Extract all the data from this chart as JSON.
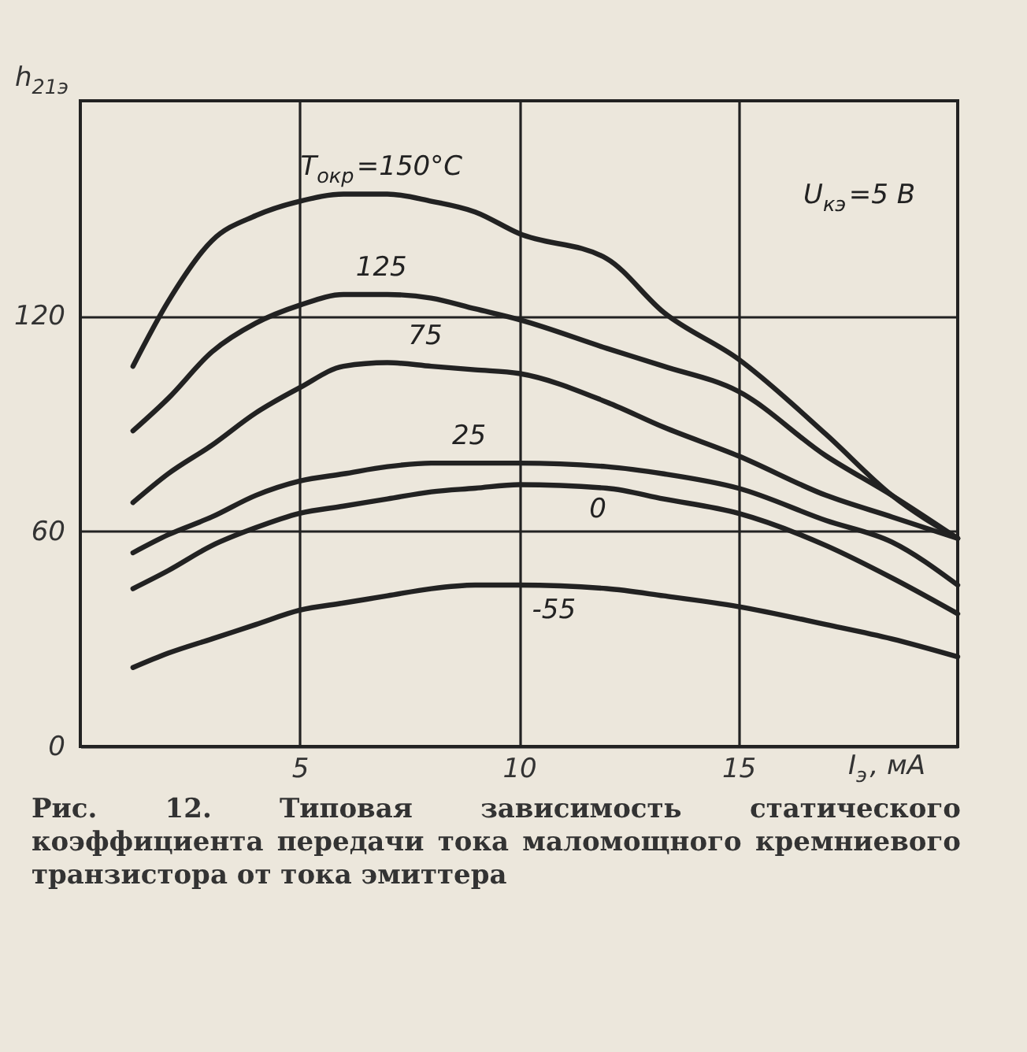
{
  "chart_data": {
    "type": "line",
    "xlabel": "I$_{э}$, мА",
    "ylabel": "h$_{21э}$",
    "xlim": [
      0,
      20
    ],
    "ylim": [
      0,
      180
    ],
    "xticks": [
      5,
      10,
      15
    ],
    "yticks": [
      0,
      60,
      120
    ],
    "grid": true,
    "legend": false,
    "marker": "none",
    "line_style": "solid",
    "annotations": [
      "U$_{кэ}$=5 В",
      "Рис. 12. Типовая зависимость статического коэффициента передачи тока маломощного кремниевого транзистора от тока эмиттера"
    ],
    "x": [
      1.2,
      2,
      3,
      4,
      5,
      6,
      7,
      8,
      9,
      10,
      12,
      13.3,
      15,
      17,
      18.5,
      20
    ],
    "series": [
      {
        "name": "T$_{окр}$=150°C",
        "color": "#222222",
        "values": [
          106,
          124,
          141,
          148,
          152,
          154,
          154,
          152,
          149,
          143,
          136,
          121,
          108,
          87,
          70,
          58
        ]
      },
      {
        "name": "125",
        "color": "#222222",
        "values": [
          88,
          97,
          110,
          118,
          123,
          126,
          126,
          125,
          122,
          119,
          111,
          106,
          99,
          81,
          70,
          58
        ]
      },
      {
        "name": "75",
        "color": "#222222",
        "values": [
          68,
          76,
          84,
          93,
          100,
          106,
          107,
          106,
          105,
          104,
          96,
          89,
          81,
          70,
          64,
          58
        ]
      },
      {
        "name": "25",
        "color": "#222222",
        "values": [
          54,
          59,
          64,
          70,
          74,
          76,
          78,
          79,
          79,
          79,
          78,
          76,
          72,
          63,
          57,
          45
        ]
      },
      {
        "name": "0",
        "color": "#222222",
        "values": [
          44,
          49,
          56,
          61,
          65,
          67,
          69,
          71,
          72,
          73,
          72,
          69,
          65,
          56,
          47,
          37
        ]
      },
      {
        "name": "-55",
        "color": "#222222",
        "values": [
          22,
          26,
          30,
          34,
          38,
          40,
          42,
          44,
          45,
          45,
          44,
          42,
          39,
          34,
          30,
          25
        ]
      }
    ]
  }
}
